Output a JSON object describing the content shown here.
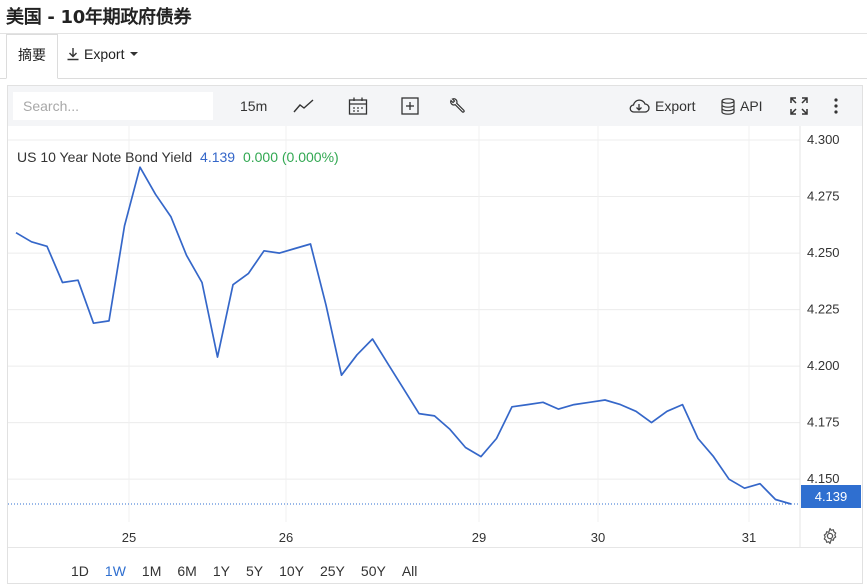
{
  "page": {
    "title": "美国 - 10年期政府债券"
  },
  "tabs": {
    "summary": "摘要",
    "export": "Export"
  },
  "toolbar": {
    "search_placeholder": "Search...",
    "interval": "15m",
    "export": "Export",
    "api": "API"
  },
  "legend": {
    "name": "US 10 Year Note Bond Yield",
    "value": "4.139",
    "change": "0.000 (0.000%)"
  },
  "price_badge": "4.139",
  "ranges": [
    "1D",
    "1W",
    "1M",
    "6M",
    "1Y",
    "5Y",
    "10Y",
    "25Y",
    "50Y",
    "All"
  ],
  "active_range": "1W",
  "colors": {
    "line": "#3567c9",
    "badge": "#2f6fd0",
    "up": "#32a852"
  },
  "chart_data": {
    "type": "line",
    "title": "",
    "series": [
      {
        "name": "US 10 Year Note Bond Yield",
        "x": [
          0,
          2,
          4,
          6,
          8,
          10,
          12,
          14,
          16,
          18,
          20,
          22,
          24,
          26,
          28,
          30,
          32,
          34,
          36,
          38,
          40,
          42,
          44,
          46,
          48,
          50,
          52,
          54,
          56,
          58,
          60,
          62,
          64,
          66,
          68,
          70,
          72,
          74,
          76,
          78,
          80,
          82,
          84,
          86,
          88,
          90,
          92,
          94,
          96,
          98,
          100
        ],
        "y": [
          4.259,
          4.255,
          4.253,
          4.237,
          4.238,
          4.219,
          4.22,
          4.262,
          4.288,
          4.276,
          4.266,
          4.249,
          4.237,
          4.204,
          4.236,
          4.241,
          4.251,
          4.25,
          4.252,
          4.254,
          4.227,
          4.196,
          4.205,
          4.212,
          4.201,
          4.19,
          4.179,
          4.178,
          4.172,
          4.164,
          4.16,
          4.168,
          4.182,
          4.183,
          4.184,
          4.181,
          4.183,
          4.184,
          4.185,
          4.183,
          4.18,
          4.175,
          4.18,
          4.183,
          4.168,
          4.16,
          4.15,
          4.146,
          4.148,
          4.141,
          4.139
        ]
      }
    ],
    "x_tick_labels": [
      "25",
      "26",
      "29",
      "30",
      "31"
    ],
    "y_ticks": [
      4.15,
      4.175,
      4.2,
      4.225,
      4.25,
      4.275,
      4.3
    ],
    "ylim": [
      4.1315,
      4.3062
    ],
    "last_value": 4.139,
    "grid": true
  }
}
